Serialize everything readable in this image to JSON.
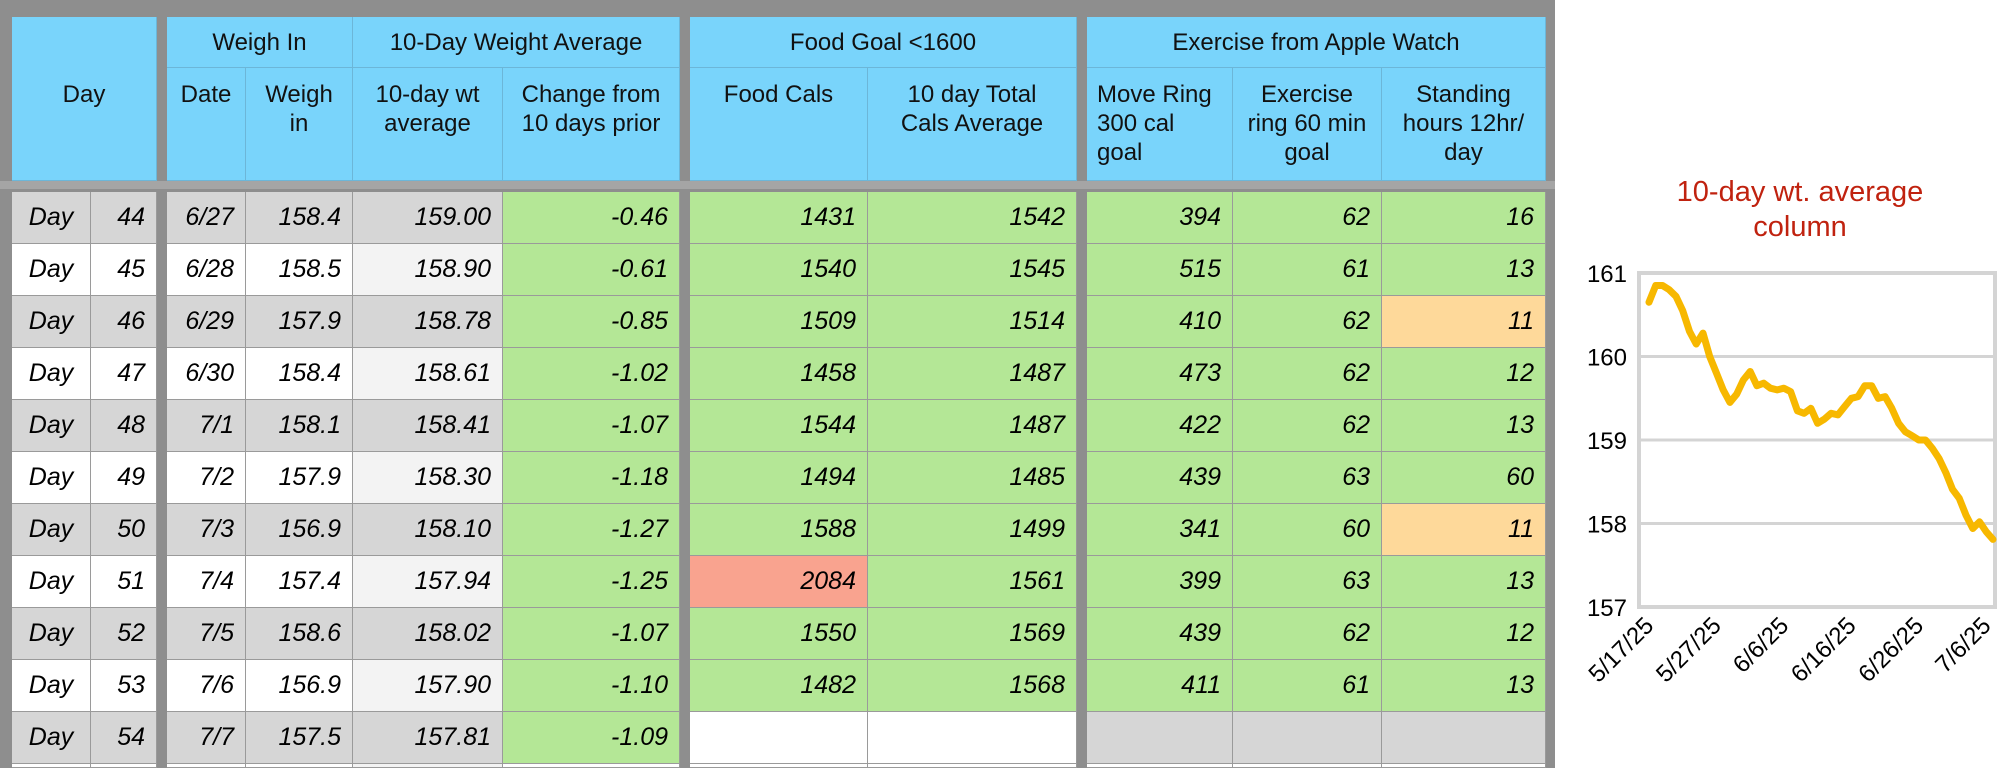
{
  "colors": {
    "header_blue": "#79d4fb",
    "cell_green": "#b4e796",
    "cell_red": "#f9a38f",
    "cell_orange": "#fed99a",
    "cell_gray": "#d6d6d6",
    "chart_line": "#f7b800",
    "chart_title": "#c0220f"
  },
  "groups": {
    "day": "Day",
    "weigh_in": "Weigh In",
    "avg": "10-Day Weight Average",
    "food": "Food Goal <1600",
    "exercise": "Exercise from Apple Watch"
  },
  "columns": {
    "date": "Date",
    "weigh": "Weigh\nin",
    "avg": "10-day wt\naverage",
    "change": "Change from\n10 days prior",
    "food_cals": "Food Cals",
    "total_avg": "10 day Total\nCals Average",
    "move": "Move Ring\n300 cal\ngoal",
    "exercise": "Exercise\nring 60 min\ngoal",
    "standing": "Standing\nhours 12hr/\nday"
  },
  "rows": [
    {
      "day": "Day",
      "num": "44",
      "date": "6/27",
      "weigh": "158.4",
      "avg": "159.00",
      "change": "-0.46",
      "food": "1431",
      "total": "1542",
      "move": "394",
      "exercise": "62",
      "stand": "16"
    },
    {
      "day": "Day",
      "num": "45",
      "date": "6/28",
      "weigh": "158.5",
      "avg": "158.90",
      "change": "-0.61",
      "food": "1540",
      "total": "1545",
      "move": "515",
      "exercise": "61",
      "stand": "13"
    },
    {
      "day": "Day",
      "num": "46",
      "date": "6/29",
      "weigh": "157.9",
      "avg": "158.78",
      "change": "-0.85",
      "food": "1509",
      "total": "1514",
      "move": "410",
      "exercise": "62",
      "stand": "11"
    },
    {
      "day": "Day",
      "num": "47",
      "date": "6/30",
      "weigh": "158.4",
      "avg": "158.61",
      "change": "-1.02",
      "food": "1458",
      "total": "1487",
      "move": "473",
      "exercise": "62",
      "stand": "12"
    },
    {
      "day": "Day",
      "num": "48",
      "date": "7/1",
      "weigh": "158.1",
      "avg": "158.41",
      "change": "-1.07",
      "food": "1544",
      "total": "1487",
      "move": "422",
      "exercise": "62",
      "stand": "13"
    },
    {
      "day": "Day",
      "num": "49",
      "date": "7/2",
      "weigh": "157.9",
      "avg": "158.30",
      "change": "-1.18",
      "food": "1494",
      "total": "1485",
      "move": "439",
      "exercise": "63",
      "stand": "60"
    },
    {
      "day": "Day",
      "num": "50",
      "date": "7/3",
      "weigh": "156.9",
      "avg": "158.10",
      "change": "-1.27",
      "food": "1588",
      "total": "1499",
      "move": "341",
      "exercise": "60",
      "stand": "11"
    },
    {
      "day": "Day",
      "num": "51",
      "date": "7/4",
      "weigh": "157.4",
      "avg": "157.94",
      "change": "-1.25",
      "food": "2084",
      "total": "1561",
      "move": "399",
      "exercise": "63",
      "stand": "13"
    },
    {
      "day": "Day",
      "num": "52",
      "date": "7/5",
      "weigh": "158.6",
      "avg": "158.02",
      "change": "-1.07",
      "food": "1550",
      "total": "1569",
      "move": "439",
      "exercise": "62",
      "stand": "12"
    },
    {
      "day": "Day",
      "num": "53",
      "date": "7/6",
      "weigh": "156.9",
      "avg": "157.90",
      "change": "-1.10",
      "food": "1482",
      "total": "1568",
      "move": "411",
      "exercise": "61",
      "stand": "13"
    },
    {
      "day": "Day",
      "num": "54",
      "date": "7/7",
      "weigh": "157.5",
      "avg": "157.81",
      "change": "-1.09",
      "food": "",
      "total": "",
      "move": "",
      "exercise": "",
      "stand": ""
    }
  ],
  "cell_colors": {
    "food_red_row": 7,
    "stand_orange_rows": [
      2,
      6
    ]
  },
  "chart_data": {
    "type": "line",
    "title": "10-day wt. average\ncolumn",
    "ylim": [
      157,
      161
    ],
    "yticks": [
      "157",
      "158",
      "159",
      "160",
      "161"
    ],
    "xticks": [
      "5/17/25",
      "5/27/25",
      "6/6/25",
      "6/16/25",
      "6/26/25",
      "7/6/25"
    ],
    "grid": true,
    "x": [
      "5/17/25",
      "5/18/25",
      "5/19/25",
      "5/20/25",
      "5/21/25",
      "5/22/25",
      "5/23/25",
      "5/24/25",
      "5/25/25",
      "5/26/25",
      "5/27/25",
      "5/28/25",
      "5/29/25",
      "5/30/25",
      "5/31/25",
      "6/1/25",
      "6/2/25",
      "6/3/25",
      "6/4/25",
      "6/5/25",
      "6/6/25",
      "6/7/25",
      "6/8/25",
      "6/9/25",
      "6/10/25",
      "6/11/25",
      "6/12/25",
      "6/13/25",
      "6/14/25",
      "6/15/25",
      "6/16/25",
      "6/17/25",
      "6/18/25",
      "6/19/25",
      "6/20/25",
      "6/21/25",
      "6/22/25",
      "6/23/25",
      "6/24/25",
      "6/25/25",
      "6/26/25",
      "6/27/25",
      "6/28/25",
      "6/29/25",
      "6/30/25",
      "7/1/25",
      "7/2/25",
      "7/3/25",
      "7/4/25",
      "7/5/25",
      "7/6/25",
      "7/7/25"
    ],
    "values": [
      160.65,
      160.85,
      160.85,
      160.8,
      160.72,
      160.55,
      160.3,
      160.15,
      160.28,
      160.0,
      159.8,
      159.6,
      159.45,
      159.55,
      159.72,
      159.82,
      159.65,
      159.68,
      159.62,
      159.6,
      159.62,
      159.58,
      159.35,
      159.32,
      159.38,
      159.2,
      159.25,
      159.32,
      159.3,
      159.4,
      159.5,
      159.52,
      159.65,
      159.65,
      159.5,
      159.52,
      159.38,
      159.2,
      159.1,
      159.05,
      159.0,
      159.0,
      158.9,
      158.78,
      158.61,
      158.41,
      158.3,
      158.1,
      157.94,
      158.02,
      157.9,
      157.81
    ]
  }
}
